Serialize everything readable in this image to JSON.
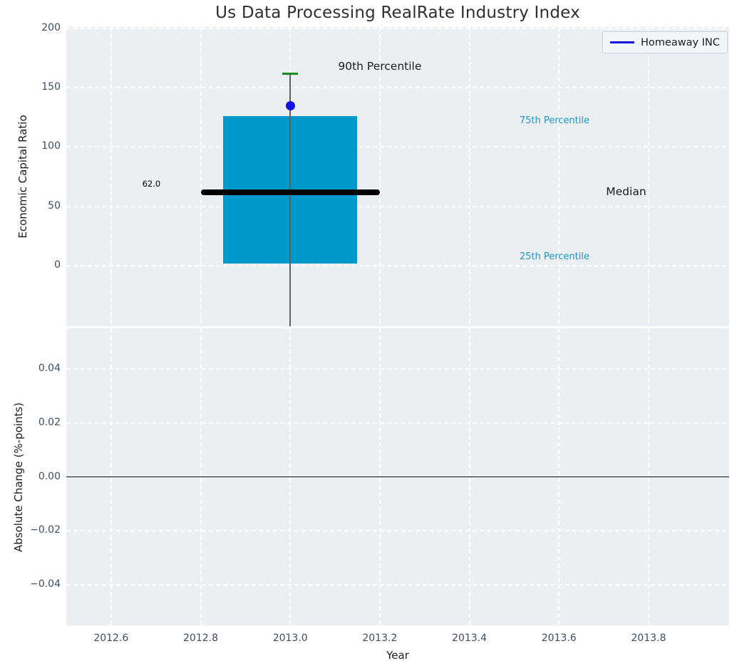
{
  "title": "Us Data Processing RealRate Industry Index",
  "legend": {
    "label": "Homeaway INC",
    "line_color": "#1414dd"
  },
  "colors": {
    "figure_bg": "#ffffff",
    "plot_bg": "#eceff1",
    "grid": "#ffffff",
    "box_fill": "#0099cb",
    "median_line": "#000000",
    "whisker": "#5a6066",
    "p90_cap": "#1d8a1d",
    "company_dot": "#1414dd",
    "percentile_label": "#2196c3",
    "tick_label": "#3d4d63",
    "zero_line": "#000000",
    "title_text": "#2f2f2f"
  },
  "chart_data": [
    {
      "type": "boxplot",
      "title": "Us Data Processing RealRate Industry Index",
      "ylabel": "Economic Capital Ratio",
      "xlim": [
        2012.5,
        2013.98
      ],
      "ylim": [
        -51,
        201
      ],
      "grid": true,
      "x_ticks": [
        2012.6,
        2012.8,
        2013.0,
        2013.2,
        2013.4,
        2013.6,
        2013.8
      ],
      "x_tick_labels": [
        "2012.6",
        "2012.8",
        "2013.0",
        "2013.2",
        "2013.4",
        "2013.6",
        "2013.8"
      ],
      "y_ticks": [
        200,
        150,
        100,
        50,
        0
      ],
      "y_tick_labels": [
        "200",
        "150",
        "100",
        "50",
        "0"
      ],
      "legend_position": "upper right",
      "box": {
        "x": 2013.0,
        "box_left": 2012.85,
        "box_right": 2013.15,
        "q25": 2,
        "median": 62.0,
        "q75": 126,
        "p90": 162,
        "whisker_low_clipped_below_axis": true,
        "median_line_left": 2012.8,
        "median_line_right": 2013.2,
        "median_label": "62.0"
      },
      "company_point": {
        "name": "Homeaway INC",
        "x": 2013.0,
        "y": 135
      },
      "annotations": [
        {
          "text": "90th Percentile",
          "x": 2013.2,
          "y": 167,
          "color": "#1a1a1a",
          "size": 15.5
        },
        {
          "text": "75th Percentile",
          "x": 2013.59,
          "y": 121,
          "color": "#2196c3",
          "size": 13
        },
        {
          "text": "Median",
          "x": 2013.75,
          "y": 61,
          "color": "#1a1a1a",
          "size": 15.5
        },
        {
          "text": "25th Percentile",
          "x": 2013.59,
          "y": 6.5,
          "color": "#2196c3",
          "size": 13
        },
        {
          "text": "62.0",
          "x": 2012.69,
          "y": 68,
          "color": "#000000",
          "size": 11.5
        }
      ]
    },
    {
      "type": "line",
      "ylabel": "Absolute Change (%-points)",
      "xlabel": "Year",
      "xlim": [
        2012.5,
        2013.98
      ],
      "ylim": [
        -0.055,
        0.055
      ],
      "grid": true,
      "y_ticks": [
        0.04,
        0.02,
        0.0,
        -0.02,
        -0.04
      ],
      "y_tick_labels": [
        "0.04",
        "0.02",
        "0.00",
        "−0.02",
        "−0.04"
      ],
      "zero_line": 0.0,
      "series": []
    }
  ]
}
